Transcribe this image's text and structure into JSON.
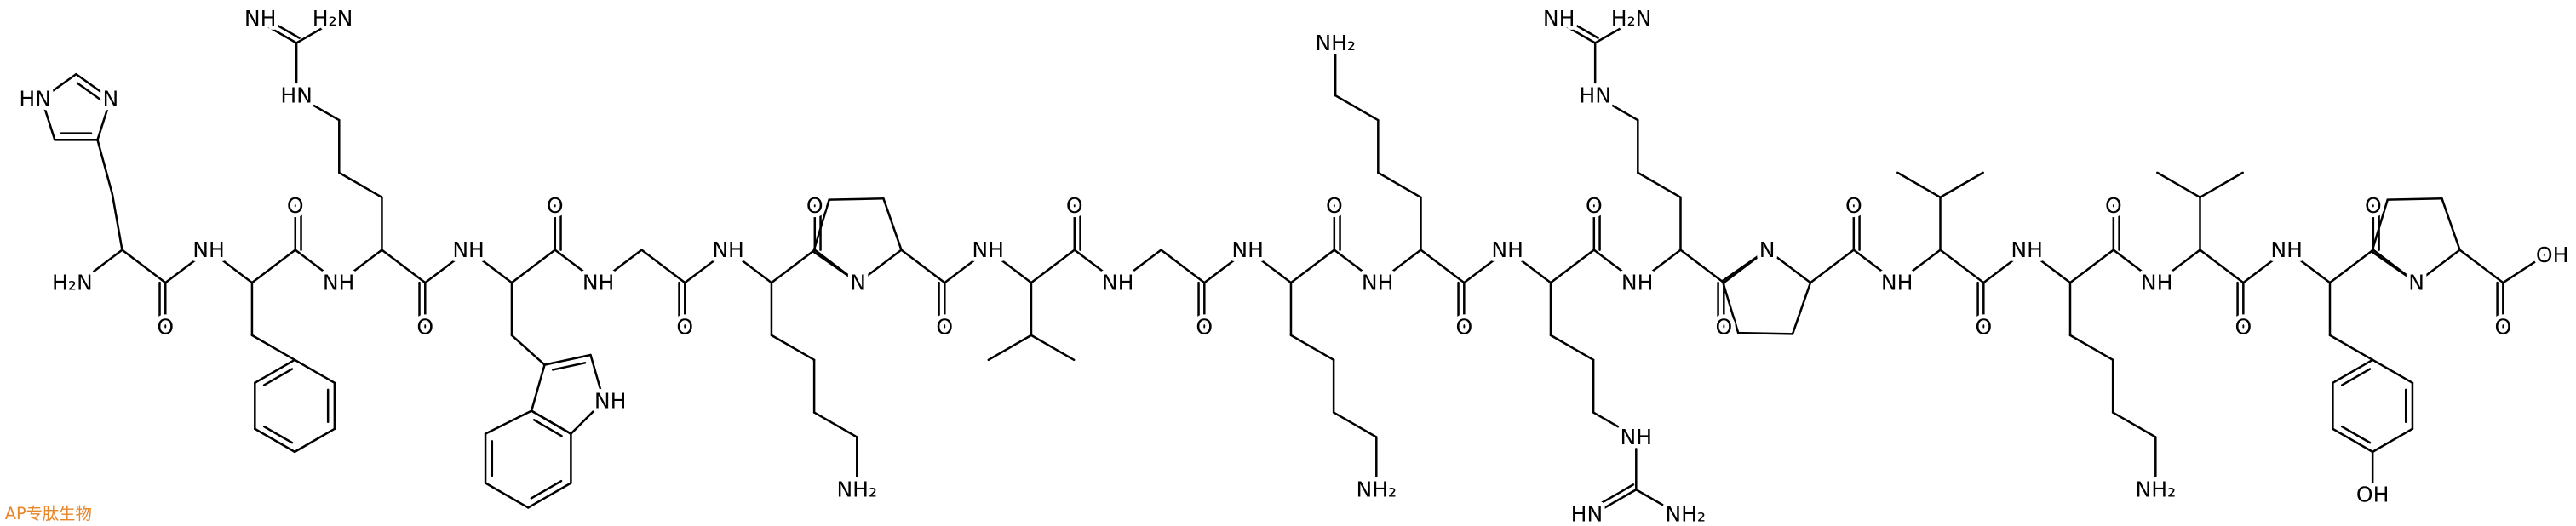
{
  "amide_n": [
    "H₂N",
    "NH",
    "NH",
    "NH",
    "NH",
    "NH",
    "N",
    "NH",
    "NH",
    "NH",
    "NH",
    "NH",
    "NH",
    "N",
    "NH",
    "NH",
    "NH",
    "NH",
    "N"
  ],
  "carbonyl_o": [
    "O",
    "O",
    "O",
    "O",
    "O",
    "O",
    "O",
    "O",
    "O",
    "O",
    "O",
    "O",
    "O",
    "O",
    "O",
    "O",
    "O",
    "O",
    "O"
  ],
  "c_terminal_oh": "OH",
  "side_chain_labels": [
    [
      "HN",
      "N"
    ],
    [
      "HN",
      "H₂N",
      "NH"
    ],
    [
      "NH"
    ],
    [
      "NH₂"
    ],
    [
      "NH₂"
    ],
    [
      "NH₂"
    ],
    [
      "NH",
      "HN",
      "NH₂"
    ],
    [
      "HN",
      "H₂N",
      "NH"
    ],
    [
      "NH₂"
    ],
    [
      "OH"
    ]
  ],
  "watermark": "AP专肽生物"
}
